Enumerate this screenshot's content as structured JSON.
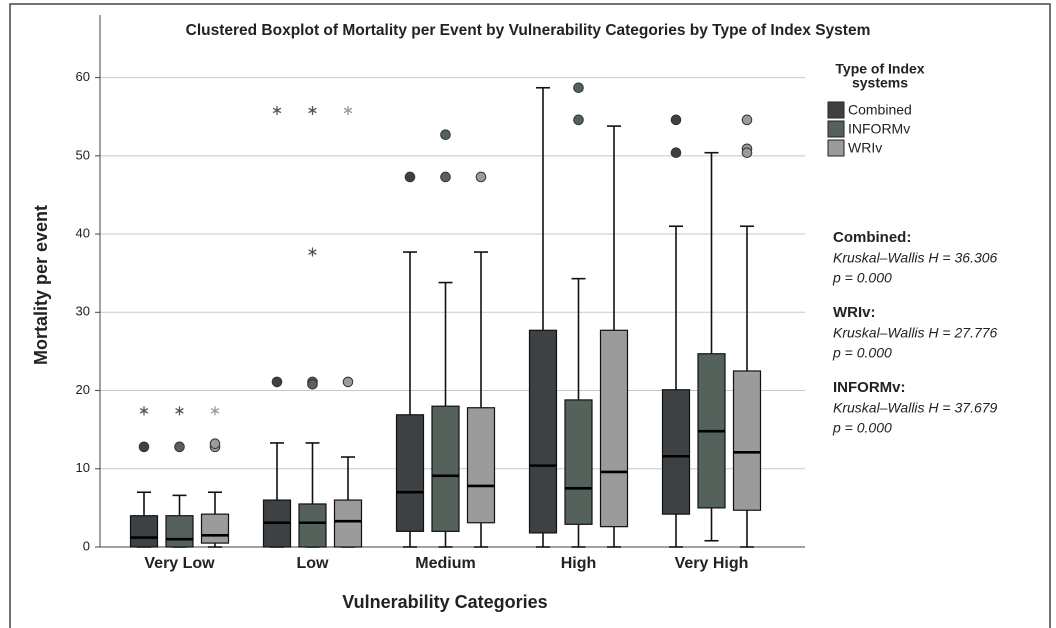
{
  "chart_data": {
    "type": "boxplot",
    "title": "Clustered Boxplot of Mortality per Event by Vulnerability Categories by Type of Index System",
    "xlabel": "Vulnerability Categories",
    "ylabel": "Mortality per event",
    "categories": [
      "Very Low",
      "Low",
      "Medium",
      "High",
      "Very High"
    ],
    "ylim": [
      0,
      68
    ],
    "yticks": [
      0,
      10,
      20,
      30,
      40,
      50,
      60
    ],
    "grid": true,
    "legend_title": [
      "Type of Index",
      "systems"
    ],
    "legend_position": "right",
    "series": [
      {
        "name": "Combined",
        "color": "#3d4144",
        "whisker_low": [
          0,
          0,
          0,
          0,
          0
        ],
        "q1": [
          0,
          0,
          2.0,
          1.8,
          4.2
        ],
        "median": [
          1.2,
          3.1,
          7.0,
          10.4,
          11.6
        ],
        "q3": [
          4.0,
          6.0,
          16.9,
          27.7,
          20.1
        ],
        "whisker_high": [
          7.0,
          13.3,
          37.7,
          58.7,
          41.0
        ],
        "outliers": [
          [
            12.8
          ],
          [
            21.1
          ],
          [
            47.3
          ],
          [],
          [
            54.6,
            50.4
          ]
        ],
        "extremes": [
          [
            17.4
          ],
          [
            55.8
          ],
          [],
          [],
          []
        ]
      },
      {
        "name": "INFORMv",
        "color": "#55625b",
        "whisker_low": [
          0,
          0,
          0,
          0,
          0.8
        ],
        "q1": [
          0,
          0,
          2.0,
          2.9,
          5.0
        ],
        "median": [
          1.0,
          3.1,
          9.1,
          7.5,
          14.8
        ],
        "q3": [
          4.0,
          5.5,
          18.0,
          18.8,
          24.7
        ],
        "whisker_high": [
          6.6,
          13.3,
          33.8,
          34.3,
          50.4
        ],
        "outliers": [
          [
            12.8
          ],
          [
            21.1,
            20.8
          ],
          [
            47.3,
            52.7
          ],
          [
            58.7,
            54.6
          ],
          []
        ],
        "extremes": [
          [
            17.4
          ],
          [
            55.8,
            37.7
          ],
          [],
          [],
          []
        ]
      },
      {
        "name": "WRIv",
        "color": "#9b9b9b",
        "whisker_low": [
          0,
          0,
          0,
          0,
          0
        ],
        "q1": [
          0.5,
          0,
          3.1,
          2.6,
          4.7
        ],
        "median": [
          1.5,
          3.3,
          7.8,
          9.6,
          12.1
        ],
        "q3": [
          4.2,
          6.0,
          17.8,
          27.7,
          22.5
        ],
        "whisker_high": [
          7.0,
          11.5,
          37.7,
          53.8,
          41.0
        ],
        "outliers": [
          [
            12.8,
            13.2
          ],
          [
            21.1
          ],
          [
            47.3
          ],
          [],
          [
            54.6,
            50.9,
            50.4
          ]
        ],
        "extremes": [
          [
            17.4
          ],
          [
            55.8
          ],
          [],
          [],
          []
        ]
      }
    ]
  },
  "annotations": [
    {
      "heading": "Combined:",
      "lines": [
        "Kruskal–Wallis H = 36.306",
        "p =  0.000"
      ]
    },
    {
      "heading": "WRIv:",
      "lines": [
        "Kruskal–Wallis H = 27.776",
        "p =  0.000"
      ]
    },
    {
      "heading": "INFORMv:",
      "lines": [
        "Kruskal–Wallis H = 37.679",
        "p =  0.000"
      ]
    }
  ]
}
